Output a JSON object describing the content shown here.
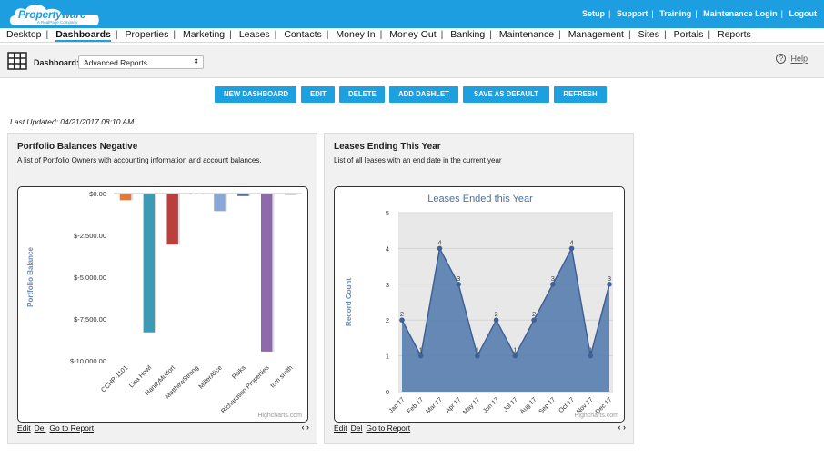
{
  "brand": {
    "name": "Propertyware",
    "tagline": "A RealPage Company",
    "color": "#1c9ee0"
  },
  "top_links": [
    "Setup",
    "Support",
    "Training",
    "Maintenance Login",
    "Logout"
  ],
  "nav": {
    "active": "Dashboards",
    "items": [
      "Desktop",
      "Dashboards",
      "Properties",
      "Marketing",
      "Leases",
      "Contacts",
      "Money In",
      "Money Out",
      "Banking",
      "Maintenance",
      "Management",
      "Sites",
      "Portals",
      "Reports"
    ]
  },
  "dashboard": {
    "label": "Dashboard:",
    "selected": "Advanced Reports",
    "help_label": "Help"
  },
  "toolbar": {
    "buttons": [
      "NEW DASHBOARD",
      "EDIT",
      "DELETE",
      "ADD DASHLET",
      "SAVE AS DEFAULT",
      "REFRESH"
    ]
  },
  "last_updated": "Last Updated: 04/21/2017 08:10 AM",
  "panels": [
    {
      "title": "Portfolio Balances Negative",
      "description": "A list of Portfolio Owners with accounting information and account balances.",
      "links": [
        "Edit",
        "Del",
        "Go to Report"
      ],
      "credit": "Highcharts.com"
    },
    {
      "title": "Leases Ending This Year",
      "description": "List of all leases with an end date in the current year",
      "links": [
        "Edit",
        "Del",
        "Go to Report"
      ],
      "credit": "Highcharts.com"
    }
  ],
  "chart_data": [
    {
      "type": "bar",
      "title": "",
      "xlabel": "",
      "ylabel": "Portfolio Balance",
      "ylim": [
        -10000,
        0
      ],
      "yticks": [
        0,
        -2500,
        -5000,
        -7500,
        -10000
      ],
      "ytick_labels": [
        "$0.00",
        "$-2,500.00",
        "$-5,000.00",
        "$-7,500.00",
        "$-10,000.00"
      ],
      "categories": [
        "CCHP-1101",
        "Lisa Howl",
        "HandyMutfort",
        "MatthewStrong",
        "MillerAlice",
        "Paiks",
        "Richardson Properties",
        "tom smith"
      ],
      "values": [
        -400,
        -8300,
        -3050,
        -20,
        -1050,
        -150,
        -9450,
        -80
      ],
      "colors": [
        "#e07b39",
        "#3a9bb3",
        "#b9403d",
        "#c0392b",
        "#8aa8d6",
        "#4a6fa5",
        "#8e6aad",
        "#aaaaaa"
      ]
    },
    {
      "type": "area",
      "title": "Leases Ended this Year",
      "xlabel": "",
      "ylabel": "Record Count",
      "ylim": [
        0,
        5
      ],
      "yticks": [
        0,
        1,
        2,
        3,
        4,
        5
      ],
      "categories": [
        "Jan 17",
        "Feb 17",
        "Mar 17",
        "Apr 17",
        "May 17",
        "Jun 17",
        "Jul 17",
        "Aug 17",
        "Sep 17",
        "Oct 17",
        "Nov 17",
        "Dec 17"
      ],
      "values": [
        2,
        1,
        4,
        3,
        1,
        2,
        1,
        2,
        3,
        4,
        1,
        3
      ],
      "color": "#5a7fb0"
    }
  ]
}
